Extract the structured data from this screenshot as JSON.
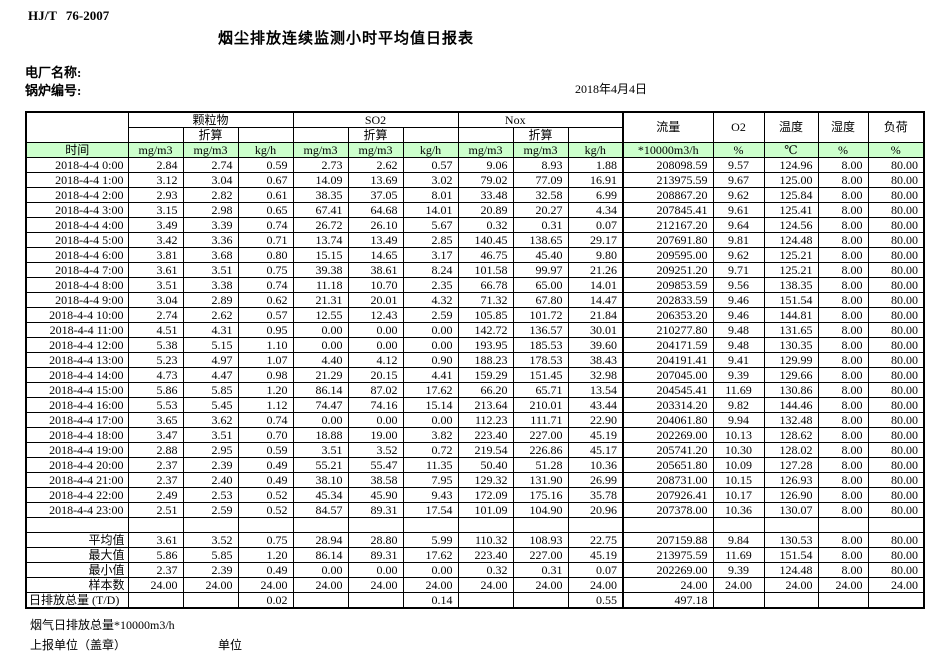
{
  "doc": {
    "standard": "HJ/T 76-2007",
    "title": "烟尘排放连续监测小时平均值日报表",
    "plant_label": "电厂名称:",
    "boiler_label": "锅炉编号:",
    "date": "2018年4月4日"
  },
  "table": {
    "time_label": "时间",
    "converted_label": "折算",
    "groups": {
      "pm": "颗粒物",
      "so2": "SO2",
      "nox": "Nox",
      "flow": "流量",
      "o2": "O2",
      "temp": "温度",
      "humidity": "湿度",
      "load": "负荷"
    },
    "units": [
      "mg/m3",
      "mg/m3",
      "kg/h",
      "mg/m3",
      "mg/m3",
      "kg/h",
      "mg/m3",
      "mg/m3",
      "kg/h",
      "*10000m3/h",
      "%",
      "℃",
      "%",
      "%"
    ],
    "rows": [
      {
        "time": "2018-4-4 0:00",
        "values": [
          "2.84",
          "2.74",
          "0.59",
          "2.73",
          "2.62",
          "0.57",
          "9.06",
          "8.93",
          "1.88",
          "208098.59",
          "9.57",
          "124.96",
          "8.00",
          "80.00"
        ]
      },
      {
        "time": "2018-4-4 1:00",
        "values": [
          "3.12",
          "3.04",
          "0.67",
          "14.09",
          "13.69",
          "3.02",
          "79.02",
          "77.09",
          "16.91",
          "213975.59",
          "9.67",
          "125.00",
          "8.00",
          "80.00"
        ]
      },
      {
        "time": "2018-4-4 2:00",
        "values": [
          "2.93",
          "2.82",
          "0.61",
          "38.35",
          "37.05",
          "8.01",
          "33.48",
          "32.58",
          "6.99",
          "208867.20",
          "9.62",
          "125.84",
          "8.00",
          "80.00"
        ]
      },
      {
        "time": "2018-4-4 3:00",
        "values": [
          "3.15",
          "2.98",
          "0.65",
          "67.41",
          "64.68",
          "14.01",
          "20.89",
          "20.27",
          "4.34",
          "207845.41",
          "9.61",
          "125.41",
          "8.00",
          "80.00"
        ]
      },
      {
        "time": "2018-4-4 4:00",
        "values": [
          "3.49",
          "3.39",
          "0.74",
          "26.72",
          "26.10",
          "5.67",
          "0.32",
          "0.31",
          "0.07",
          "212167.20",
          "9.64",
          "124.56",
          "8.00",
          "80.00"
        ]
      },
      {
        "time": "2018-4-4 5:00",
        "values": [
          "3.42",
          "3.36",
          "0.71",
          "13.74",
          "13.49",
          "2.85",
          "140.45",
          "138.65",
          "29.17",
          "207691.80",
          "9.81",
          "124.48",
          "8.00",
          "80.00"
        ]
      },
      {
        "time": "2018-4-4 6:00",
        "values": [
          "3.81",
          "3.68",
          "0.80",
          "15.15",
          "14.65",
          "3.17",
          "46.75",
          "45.40",
          "9.80",
          "209595.00",
          "9.62",
          "125.21",
          "8.00",
          "80.00"
        ]
      },
      {
        "time": "2018-4-4 7:00",
        "values": [
          "3.61",
          "3.51",
          "0.75",
          "39.38",
          "38.61",
          "8.24",
          "101.58",
          "99.97",
          "21.26",
          "209251.20",
          "9.71",
          "125.21",
          "8.00",
          "80.00"
        ]
      },
      {
        "time": "2018-4-4 8:00",
        "values": [
          "3.51",
          "3.38",
          "0.74",
          "11.18",
          "10.70",
          "2.35",
          "66.78",
          "65.00",
          "14.01",
          "209853.59",
          "9.56",
          "138.35",
          "8.00",
          "80.00"
        ]
      },
      {
        "time": "2018-4-4 9:00",
        "values": [
          "3.04",
          "2.89",
          "0.62",
          "21.31",
          "20.01",
          "4.32",
          "71.32",
          "67.80",
          "14.47",
          "202833.59",
          "9.46",
          "151.54",
          "8.00",
          "80.00"
        ]
      },
      {
        "time": "2018-4-4 10:00",
        "values": [
          "2.74",
          "2.62",
          "0.57",
          "12.55",
          "12.43",
          "2.59",
          "105.85",
          "101.72",
          "21.84",
          "206353.20",
          "9.46",
          "144.81",
          "8.00",
          "80.00"
        ]
      },
      {
        "time": "2018-4-4 11:00",
        "values": [
          "4.51",
          "4.31",
          "0.95",
          "0.00",
          "0.00",
          "0.00",
          "142.72",
          "136.57",
          "30.01",
          "210277.80",
          "9.48",
          "131.65",
          "8.00",
          "80.00"
        ]
      },
      {
        "time": "2018-4-4 12:00",
        "values": [
          "5.38",
          "5.15",
          "1.10",
          "0.00",
          "0.00",
          "0.00",
          "193.95",
          "185.53",
          "39.60",
          "204171.59",
          "9.48",
          "130.35",
          "8.00",
          "80.00"
        ]
      },
      {
        "time": "2018-4-4 13:00",
        "values": [
          "5.23",
          "4.97",
          "1.07",
          "4.40",
          "4.12",
          "0.90",
          "188.23",
          "178.53",
          "38.43",
          "204191.41",
          "9.41",
          "129.99",
          "8.00",
          "80.00"
        ]
      },
      {
        "time": "2018-4-4 14:00",
        "values": [
          "4.73",
          "4.47",
          "0.98",
          "21.29",
          "20.15",
          "4.41",
          "159.29",
          "151.45",
          "32.98",
          "207045.00",
          "9.39",
          "129.66",
          "8.00",
          "80.00"
        ]
      },
      {
        "time": "2018-4-4 15:00",
        "values": [
          "5.86",
          "5.85",
          "1.20",
          "86.14",
          "87.02",
          "17.62",
          "66.20",
          "65.71",
          "13.54",
          "204545.41",
          "11.69",
          "130.86",
          "8.00",
          "80.00"
        ]
      },
      {
        "time": "2018-4-4 16:00",
        "values": [
          "5.53",
          "5.45",
          "1.12",
          "74.47",
          "74.16",
          "15.14",
          "213.64",
          "210.01",
          "43.44",
          "203314.20",
          "9.82",
          "144.46",
          "8.00",
          "80.00"
        ]
      },
      {
        "time": "2018-4-4 17:00",
        "values": [
          "3.65",
          "3.62",
          "0.74",
          "0.00",
          "0.00",
          "0.00",
          "112.23",
          "111.71",
          "22.90",
          "204061.80",
          "9.94",
          "132.48",
          "8.00",
          "80.00"
        ]
      },
      {
        "time": "2018-4-4 18:00",
        "values": [
          "3.47",
          "3.51",
          "0.70",
          "18.88",
          "19.00",
          "3.82",
          "223.40",
          "227.00",
          "45.19",
          "202269.00",
          "10.13",
          "128.62",
          "8.00",
          "80.00"
        ]
      },
      {
        "time": "2018-4-4 19:00",
        "values": [
          "2.88",
          "2.95",
          "0.59",
          "3.51",
          "3.52",
          "0.72",
          "219.54",
          "226.86",
          "45.17",
          "205741.20",
          "10.30",
          "128.02",
          "8.00",
          "80.00"
        ]
      },
      {
        "time": "2018-4-4 20:00",
        "values": [
          "2.37",
          "2.39",
          "0.49",
          "55.21",
          "55.47",
          "11.35",
          "50.40",
          "51.28",
          "10.36",
          "205651.80",
          "10.09",
          "127.28",
          "8.00",
          "80.00"
        ]
      },
      {
        "time": "2018-4-4 21:00",
        "values": [
          "2.37",
          "2.40",
          "0.49",
          "38.10",
          "38.58",
          "7.95",
          "129.32",
          "131.90",
          "26.99",
          "208731.00",
          "10.15",
          "126.93",
          "8.00",
          "80.00"
        ]
      },
      {
        "time": "2018-4-4 22:00",
        "values": [
          "2.49",
          "2.53",
          "0.52",
          "45.34",
          "45.90",
          "9.43",
          "172.09",
          "175.16",
          "35.78",
          "207926.41",
          "10.17",
          "126.90",
          "8.00",
          "80.00"
        ]
      },
      {
        "time": "2018-4-4 23:00",
        "values": [
          "2.51",
          "2.59",
          "0.52",
          "84.57",
          "89.31",
          "17.54",
          "101.09",
          "104.90",
          "20.96",
          "207378.00",
          "10.36",
          "130.07",
          "8.00",
          "80.00"
        ]
      }
    ],
    "summary": [
      {
        "label": "平均值",
        "values": [
          "3.61",
          "3.52",
          "0.75",
          "28.94",
          "28.80",
          "5.99",
          "110.32",
          "108.93",
          "22.75",
          "207159.88",
          "9.84",
          "130.53",
          "8.00",
          "80.00"
        ]
      },
      {
        "label": "最大值",
        "values": [
          "5.86",
          "5.85",
          "1.20",
          "86.14",
          "89.31",
          "17.62",
          "223.40",
          "227.00",
          "45.19",
          "213975.59",
          "11.69",
          "151.54",
          "8.00",
          "80.00"
        ]
      },
      {
        "label": "最小值",
        "values": [
          "2.37",
          "2.39",
          "0.49",
          "0.00",
          "0.00",
          "0.00",
          "0.32",
          "0.31",
          "0.07",
          "202269.00",
          "9.39",
          "124.48",
          "8.00",
          "80.00"
        ]
      },
      {
        "label": "样本数",
        "values": [
          "24.00",
          "24.00",
          "24.00",
          "24.00",
          "24.00",
          "24.00",
          "24.00",
          "24.00",
          "24.00",
          "24.00",
          "24.00",
          "24.00",
          "24.00",
          "24.00"
        ]
      }
    ],
    "daily_total": {
      "label": "日排放总量 (T/D)",
      "values": [
        "",
        "",
        "0.02",
        "",
        "",
        "0.14",
        "",
        "",
        "0.55",
        "497.18",
        "",
        "",
        "",
        ""
      ]
    }
  },
  "footer": {
    "note": "烟气日排放总量*10000m3/h",
    "report_unit": "上报单位（盖章）",
    "unit": "单位"
  }
}
